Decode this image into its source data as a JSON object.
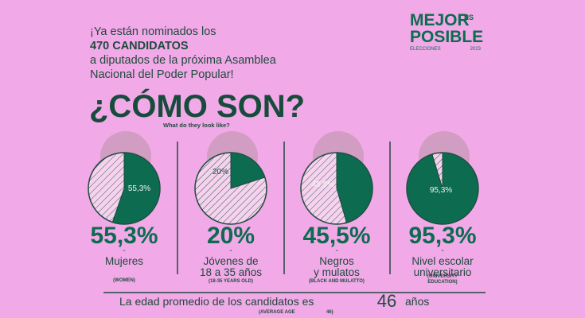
{
  "header": {
    "lines": [
      "¡Ya están nominados los",
      "470 CANDIDATOS",
      "a diputados de la próxima Asamblea",
      "Nacional del Poder Popular!"
    ]
  },
  "logo": {
    "word1": "MEJOR",
    "es": "ES",
    "word2": "POSIBLE",
    "sub1": "ELECCIONES",
    "sub2": "2023"
  },
  "heading": "¿CÓMO SON?",
  "subheading": "What do they look like?",
  "stats": [
    {
      "value": 55.3,
      "value_label": "55,3%",
      "dash": "-",
      "label": [
        "Mujeres"
      ],
      "translation": [
        "(WOMEN)"
      ]
    },
    {
      "value": 20,
      "value_label": "20%",
      "dash": "-",
      "label": [
        "Jóvenes de",
        "18 a 35 años"
      ],
      "translation": [
        "(18-35 YEARS OLD)"
      ]
    },
    {
      "value": 45.5,
      "value_label": "45,5%",
      "pie_label": "45.5%",
      "dash": "-",
      "label": [
        "Negros",
        "y mulatos"
      ],
      "translation": [
        "(BLACK AND MULATTO)"
      ]
    },
    {
      "value": 95.3,
      "value_label": "95,3%",
      "dash": "-",
      "label": [
        "Nivel escolar",
        "universitario"
      ],
      "translation": [
        "(UNIVERSITY",
        "EDUCATION)"
      ]
    }
  ],
  "footer": {
    "text": "La edad promedio de los candidatos es",
    "age": 46,
    "unit": "años",
    "translation": "(AVERAGE AGE",
    "translation_age": "46)"
  }
}
